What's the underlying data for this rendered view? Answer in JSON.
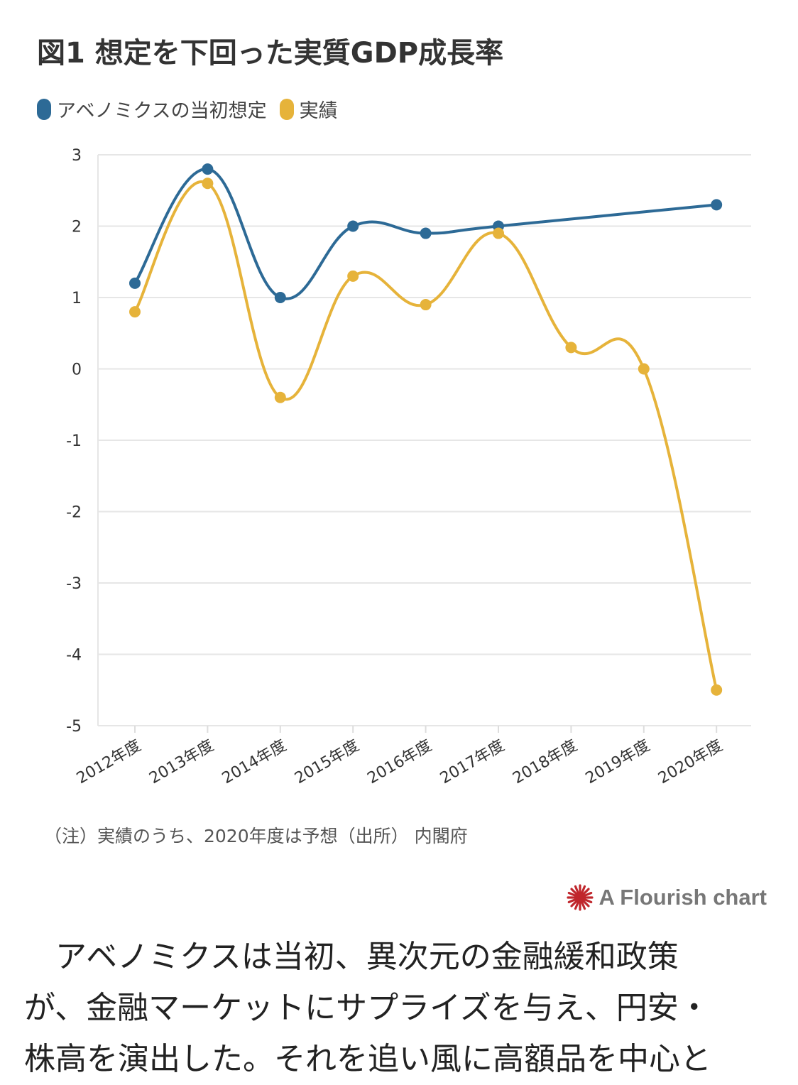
{
  "title": "図1 想定を下回った実質GDP成長率",
  "legend": [
    {
      "label": "アベノミクスの当初想定",
      "color": "#2d6a96"
    },
    {
      "label": "実績",
      "color": "#e6b33a"
    }
  ],
  "note": "（注）実績のうち、2020年度は予想（出所） 内閣府",
  "brand": "A Flourish chart",
  "article": {
    "lines": [
      "　アベノミクスは当初、異次元の金融緩和政策",
      "が、金融マーケットにサプライズを与え、円安・",
      "株高を演出した。それを追い風に高額品を中心と"
    ]
  },
  "chart_data": {
    "type": "line",
    "categories": [
      "2012年度",
      "2013年度",
      "2014年度",
      "2015年度",
      "2016年度",
      "2017年度",
      "2018年度",
      "2019年度",
      "2020年度"
    ],
    "ylim": [
      -5,
      3
    ],
    "yticks": [
      "3",
      "2",
      "1",
      "0",
      "-1",
      "-2",
      "-3",
      "-4",
      "-5"
    ],
    "grid": true,
    "legend_position": "top-left",
    "series": [
      {
        "name": "アベノミクスの当初想定",
        "color": "#2d6a96",
        "values": [
          1.2,
          2.8,
          1.0,
          2.0,
          1.9,
          2.0,
          null,
          null,
          2.3
        ]
      },
      {
        "name": "実績",
        "color": "#e6b33a",
        "values": [
          0.8,
          2.6,
          -0.4,
          1.3,
          0.9,
          1.9,
          0.3,
          0.0,
          -4.5
        ]
      }
    ]
  }
}
